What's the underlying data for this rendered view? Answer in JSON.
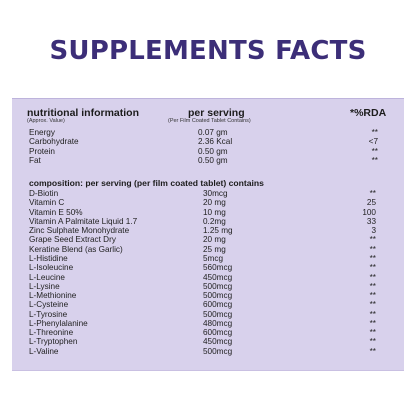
{
  "title": "SUPPLEMENTS FACTS",
  "header": {
    "label": "nutritional information",
    "label_sub": "(Approx. Value)",
    "serving": "per serving",
    "serving_sub": "(Per Film Coated Tablet Contains)",
    "rda": "*%RDA"
  },
  "nutrition": [
    {
      "name": "Energy",
      "value": "0.07 gm",
      "rda": "**"
    },
    {
      "name": "Carbohydrate",
      "value": "2.36 Kcal",
      "rda": "<7"
    },
    {
      "name": "Protein",
      "value": "0.50 gm",
      "rda": "**"
    },
    {
      "name": "Fat",
      "value": "0.50 gm",
      "rda": "**"
    }
  ],
  "composition_title": "composition: per serving (per film coated tablet) contains",
  "composition": [
    {
      "name": "D-Biotin",
      "value": "30mcg",
      "rda": "**"
    },
    {
      "name": "Vitamin C",
      "value": "20 mg",
      "rda": "25"
    },
    {
      "name": "Vitamin E 50%",
      "value": "10 mg",
      "rda": "100"
    },
    {
      "name": "Vitamin A Palmitate Liquid 1.7",
      "value": "0.2mg",
      "rda": "33"
    },
    {
      "name": "Zinc Sulphate Monohydrate",
      "value": "1.25 mg",
      "rda": "3"
    },
    {
      "name": "Grape Seed Extract Dry",
      "value": "20 mg",
      "rda": "**"
    },
    {
      "name": "Keratine Blend (as Garlic)",
      "value": "25 mg",
      "rda": "**"
    },
    {
      "name": "L-Histidine",
      "value": "5mcg",
      "rda": "**"
    },
    {
      "name": "L-Isoleucine",
      "value": "560mcg",
      "rda": "**"
    },
    {
      "name": "L-Leucine",
      "value": "450mcg",
      "rda": "**"
    },
    {
      "name": "L-Lysine",
      "value": "500mcg",
      "rda": "**"
    },
    {
      "name": "L-Methionine",
      "value": "500mcg",
      "rda": "**"
    },
    {
      "name": "L-Cysteine",
      "value": "600mcg",
      "rda": "**"
    },
    {
      "name": "L-Tyrosine",
      "value": "500mcg",
      "rda": "**"
    },
    {
      "name": "L-Phenylalanine",
      "value": "480mcg",
      "rda": "**"
    },
    {
      "name": "L-Threonine",
      "value": "600mcg",
      "rda": "**"
    },
    {
      "name": "L-Tryptophen",
      "value": "450mcg",
      "rda": "**"
    },
    {
      "name": "L-Valine",
      "value": "500mcg",
      "rda": "**"
    }
  ]
}
